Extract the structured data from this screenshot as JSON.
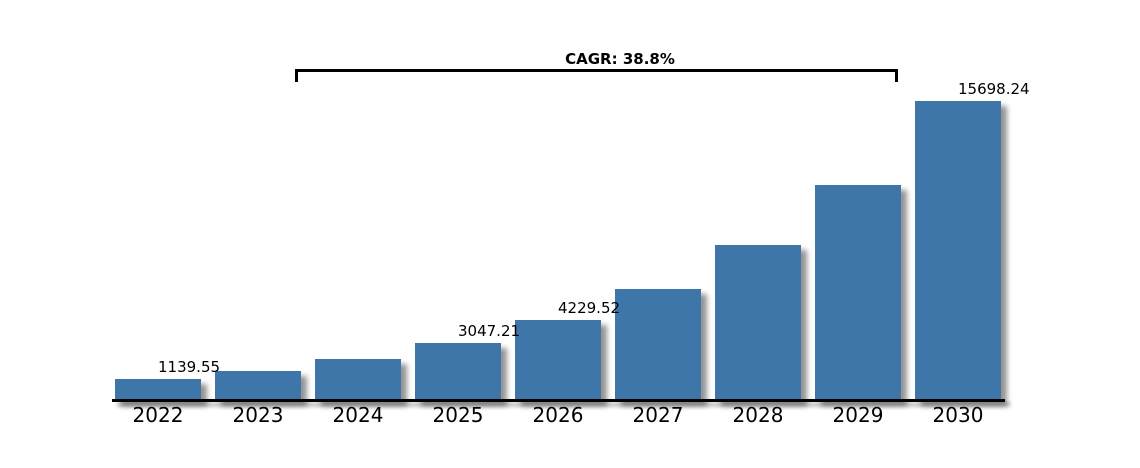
{
  "chart_data": {
    "type": "bar",
    "title": "",
    "xlabel": "",
    "ylabel": "",
    "annotation": "CAGR: 38.8%",
    "categories": [
      "2022",
      "2023",
      "2024",
      "2025",
      "2026",
      "2027",
      "2028",
      "2029",
      "2030"
    ],
    "values": [
      1139.55,
      1581.7,
      2195.4,
      3047.21,
      4229.52,
      5870.57,
      8148.35,
      11309.91,
      15698.24
    ],
    "bar_labels": [
      "1139.55",
      "",
      "",
      "3047.21",
      "4229.52",
      "",
      "",
      "",
      "15698.24"
    ],
    "ylim": [
      0,
      15698.24
    ],
    "grid": false,
    "legend": "none",
    "background_color": "#ffffff",
    "bar_color": "#3F76A9",
    "axis_color": "#000000",
    "text_color": "#000000"
  }
}
